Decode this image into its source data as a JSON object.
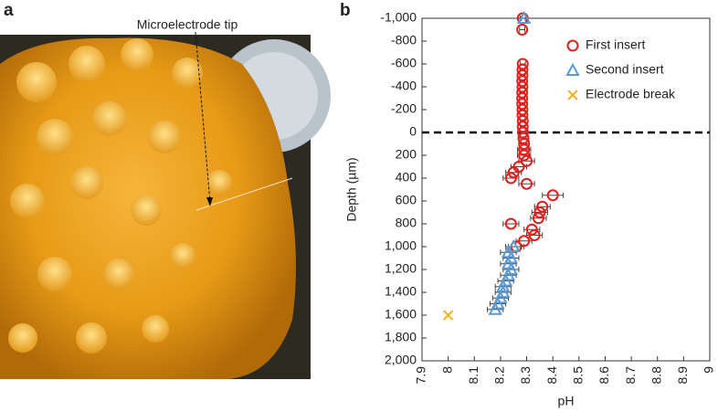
{
  "panels": [
    "a",
    "b"
  ],
  "annotation": "Microelectrode tip",
  "chart_data": {
    "type": "scatter",
    "x_label": "pH",
    "y_label": "Depth (µm)",
    "xlim": [
      7.9,
      9
    ],
    "xticks": [
      7.9,
      8,
      8.1,
      8.2,
      8.3,
      8.4,
      8.5,
      8.6,
      8.7,
      8.8,
      8.9,
      9
    ],
    "ylim": [
      -1000,
      2000
    ],
    "y_inverted": true,
    "yticks": [
      {
        "value": -1000,
        "label": "-1,000"
      },
      -800,
      -600,
      -400,
      -200,
      0,
      200,
      400,
      600,
      800,
      {
        "value": 1000,
        "label": "1,000"
      },
      {
        "value": 1200,
        "label": "1,200"
      },
      {
        "value": 1400,
        "label": "1,400"
      },
      {
        "value": 1600,
        "label": "1,600"
      },
      {
        "value": 1800,
        "label": "1,800"
      },
      {
        "value": 2000,
        "label": "2,000"
      }
    ],
    "reference_line": 0,
    "legend": "upper right",
    "series": [
      {
        "name": "First insert",
        "color": "#e3201b",
        "marker": "circle",
        "x": [
          8.285,
          8.283,
          8.285,
          8.284,
          8.284,
          8.283,
          8.284,
          8.283,
          8.283,
          8.283,
          8.284,
          8.284,
          8.285,
          8.285,
          8.286,
          8.288,
          8.29,
          8.29,
          8.29,
          8.3,
          8.27,
          8.25,
          8.24,
          8.3,
          8.4,
          8.36,
          8.35,
          8.345,
          8.24,
          8.32,
          8.33,
          8.29,
          8.26
        ],
        "values": [
          -1000,
          -900,
          -600,
          -550,
          -500,
          -450,
          -400,
          -350,
          -300,
          -250,
          -200,
          -150,
          -100,
          -50,
          0,
          50,
          100,
          150,
          200,
          250,
          300,
          350,
          400,
          450,
          550,
          650,
          700,
          750,
          800,
          850,
          900,
          950,
          1000
        ],
        "errors": [
          0.01,
          0.01,
          0.01,
          0.01,
          0.01,
          0.01,
          0.01,
          0.01,
          0.01,
          0.01,
          0.01,
          0.01,
          0.01,
          0.01,
          0.015,
          0.02,
          0.02,
          0.025,
          0.025,
          0.03,
          0.03,
          0.03,
          0.03,
          0.03,
          0.04,
          0.03,
          0.03,
          0.03,
          0.03,
          0.03,
          0.03,
          0.03,
          0.03
        ]
      },
      {
        "name": "Second insert",
        "color": "#5b9bd5",
        "marker": "triangle",
        "x": [
          8.29,
          8.25,
          8.23,
          8.24,
          8.23,
          8.24,
          8.23,
          8.22,
          8.21,
          8.21,
          8.2,
          8.19,
          8.18
        ],
        "values": [
          -1000,
          1000,
          1050,
          1100,
          1150,
          1200,
          1250,
          1300,
          1350,
          1400,
          1450,
          1500,
          1550
        ],
        "errors": [
          0.01,
          0.03,
          0.03,
          0.03,
          0.03,
          0.03,
          0.03,
          0.03,
          0.03,
          0.03,
          0.03,
          0.03,
          0.03
        ]
      },
      {
        "name": "Electrode break",
        "color": "#f0b323",
        "marker": "x",
        "x": [
          8
        ],
        "values": [
          1600
        ]
      }
    ]
  }
}
